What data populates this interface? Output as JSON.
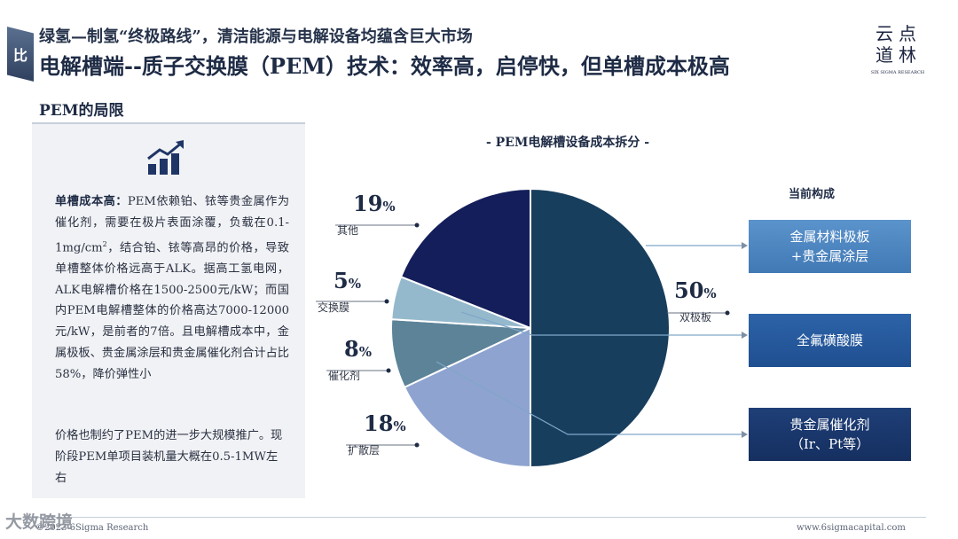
{
  "header": {
    "badge": "比",
    "subtitle": "绿氢—制氢“终极路线”，清洁能源与电解设备均蕴含巨大市场",
    "title": "电解槽端--质子交换膜（PEM）技术：效率高，启停快，但单槽成本极高",
    "logo_cn": "云点道林",
    "logo_en": "SIX SIGMA RESEARCH"
  },
  "left_panel": {
    "section_title": "PEM的局限",
    "icon": "trend-chart-icon",
    "para1_lead": "单槽成本高：",
    "para1_body_a": "PEM依赖铂、铱等贵金属作为催化剂，需要在极片表面涂覆，负载在0.1-1mg/cm",
    "para1_sup": "2",
    "para1_body_b": "，结合铂、铱等高昂的价格，导致单槽整体价格远高于ALK。据高工氢电网，ALK电解槽价格在1500-2500元/kW；而国内PEM电解槽整体的价格高达7000-12000元/kW，是前者的7倍。且电解槽成本中，金属极板、贵金属涂层和贵金属催化剂合计占比58%，降价弹性小",
    "para2": "价格也制约了PEM的进一步大规模推广。现阶段PEM单项目装机量大概在0.5-1MW左右"
  },
  "chart_data": {
    "type": "pie",
    "title": "- PEM电解槽设备成本拆分 -",
    "categories": [
      "双极板",
      "扩散层",
      "催化剂",
      "交换膜",
      "其他"
    ],
    "values": [
      50,
      18,
      8,
      5,
      19
    ],
    "unit": "%",
    "colors": [
      "#183e5e",
      "#8ea3cf",
      "#5d8398",
      "#95b9cc",
      "#141e5a"
    ],
    "structure_title": "当前构成",
    "structure_items": [
      {
        "label_line1": "金属材料极板",
        "label_line2": "+贵金属涂层"
      },
      {
        "label_line1": "全氟磺酸膜",
        "label_line2": ""
      },
      {
        "label_line1": "贵金属催化剂",
        "label_line2": "（Ir、Pt等）"
      }
    ]
  },
  "footer": {
    "left": "©2023 6Sigma Research",
    "right": "www.6sigmacapital.com",
    "watermark": "大数跨境"
  }
}
